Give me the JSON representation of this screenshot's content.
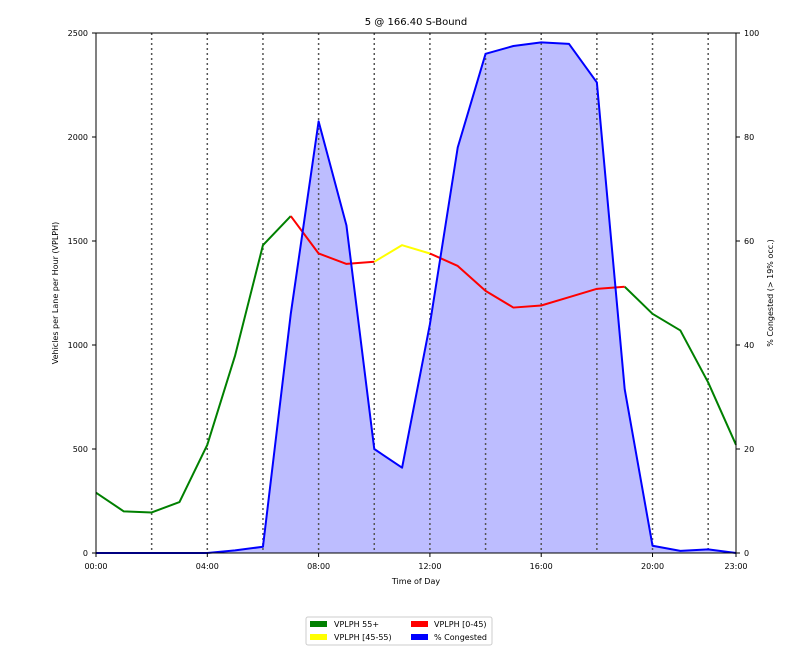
{
  "chart_data": {
    "type": "line",
    "title": "5 @ 166.40 S-Bound",
    "xlabel": "Time of Day",
    "ylabel": "Vehicles per Lane per Hour (VPLPH)",
    "y2label": "% Congested (> 19% occ.)",
    "ylim": [
      0,
      2500
    ],
    "y2lim": [
      0,
      100
    ],
    "xlim": [
      0,
      23
    ],
    "x_ticks": [
      0,
      4,
      8,
      12,
      16,
      20,
      23
    ],
    "x_tick_labels": [
      "00:00",
      "04:00",
      "08:00",
      "12:00",
      "16:00",
      "20:00",
      "23:00"
    ],
    "y_ticks": [
      0,
      500,
      1000,
      1500,
      2000,
      2500
    ],
    "y2_ticks": [
      0,
      20,
      40,
      60,
      80,
      100
    ],
    "vertical_dotted_lines": [
      2,
      4,
      6,
      8,
      10,
      12,
      14,
      16,
      18,
      20,
      22
    ],
    "grid": false,
    "legend_position": "bottom-center",
    "series": [
      {
        "name": "VPLPH 55+",
        "color": "#008000",
        "axis": "left",
        "segments": [
          [
            [
              0,
              290
            ],
            [
              1,
              200
            ],
            [
              2,
              195
            ],
            [
              3,
              245
            ],
            [
              4,
              520
            ],
            [
              5,
              950
            ],
            [
              6,
              1480
            ],
            [
              7,
              1620
            ]
          ],
          [
            [
              19,
              1280
            ],
            [
              20,
              1150
            ],
            [
              21,
              1070
            ],
            [
              22,
              820
            ],
            [
              23,
              520
            ]
          ]
        ]
      },
      {
        "name": "VPLPH [45-55)",
        "color": "#ffff00",
        "axis": "left",
        "segments": [
          [
            [
              10,
              1400
            ],
            [
              11,
              1480
            ],
            [
              12,
              1440
            ]
          ]
        ]
      },
      {
        "name": "VPLPH [0-45)",
        "color": "#ff0000",
        "axis": "left",
        "segments": [
          [
            [
              7,
              1620
            ],
            [
              8,
              1440
            ],
            [
              9,
              1390
            ],
            [
              10,
              1400
            ]
          ],
          [
            [
              12,
              1440
            ],
            [
              13,
              1380
            ],
            [
              14,
              1260
            ],
            [
              15,
              1180
            ],
            [
              16,
              1190
            ],
            [
              17,
              1230
            ],
            [
              18,
              1270
            ],
            [
              19,
              1280
            ]
          ]
        ]
      },
      {
        "name": "% Congested",
        "color": "#0000ff",
        "fill": "#bdbdff",
        "axis": "right",
        "points": [
          [
            0,
            0
          ],
          [
            1,
            0
          ],
          [
            2,
            0
          ],
          [
            3,
            0
          ],
          [
            4,
            0
          ],
          [
            5,
            0.5
          ],
          [
            6,
            1.2
          ],
          [
            7,
            46
          ],
          [
            8,
            83
          ],
          [
            9,
            63
          ],
          [
            10,
            20
          ],
          [
            11,
            16.4
          ],
          [
            12,
            44
          ],
          [
            13,
            78
          ],
          [
            14,
            96
          ],
          [
            15,
            97.5
          ],
          [
            16,
            98.2
          ],
          [
            17,
            97.9
          ],
          [
            18,
            90.5
          ],
          [
            19,
            31.5
          ],
          [
            20,
            1.4
          ],
          [
            21,
            0.4
          ],
          [
            22,
            0.7
          ],
          [
            23,
            0
          ]
        ]
      }
    ],
    "legend": [
      {
        "label": "VPLPH 55+",
        "color": "#008000"
      },
      {
        "label": "VPLPH [0-45)",
        "color": "#ff0000"
      },
      {
        "label": "VPLPH [45-55)",
        "color": "#ffff00"
      },
      {
        "label": "% Congested",
        "color": "#0000ff"
      }
    ]
  }
}
